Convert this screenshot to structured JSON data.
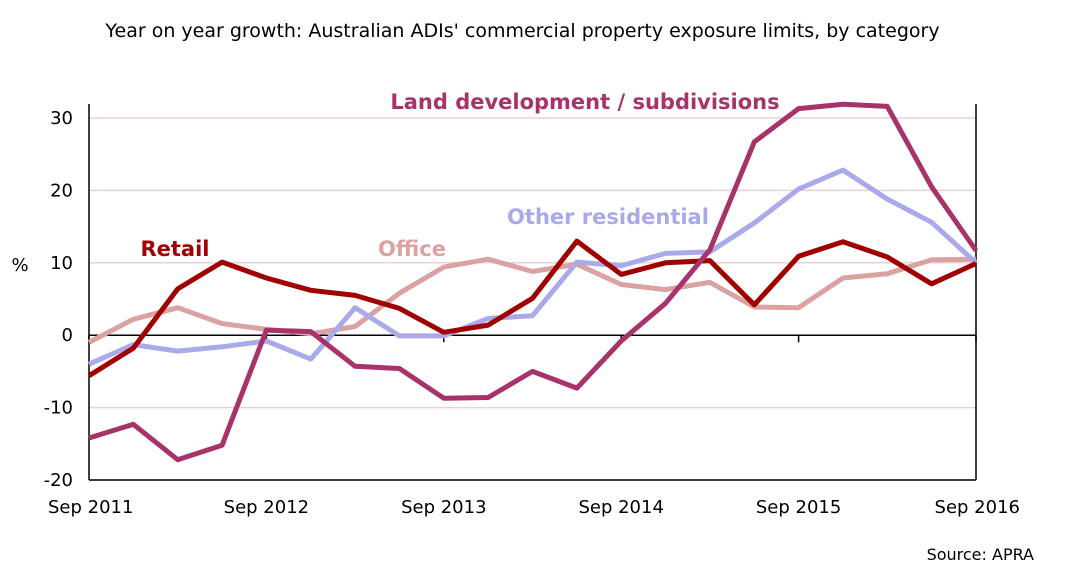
{
  "chart_data": {
    "type": "line",
    "title": "Year on year growth: Australian ADIs' commercial property exposure limits, by category",
    "ylabel": "%",
    "xlabel": "",
    "source": "Source: APRA",
    "ylim": [
      -20,
      30
    ],
    "yticks": [
      -20,
      -10,
      0,
      10,
      20,
      30
    ],
    "xtick_labels": [
      {
        "label": "Sep 2011",
        "index": 0
      },
      {
        "label": "Sep 2012",
        "index": 4
      },
      {
        "label": "Sep 2013",
        "index": 8
      },
      {
        "label": "Sep 2014",
        "index": 12
      },
      {
        "label": "Sep 2015",
        "index": 16
      },
      {
        "label": "Sep 2016",
        "index": 20
      }
    ],
    "x": [
      "Sep 2011",
      "Dec 2011",
      "Mar 2012",
      "Jun 2012",
      "Sep 2012",
      "Dec 2012",
      "Mar 2013",
      "Jun 2013",
      "Sep 2013",
      "Dec 2013",
      "Mar 2014",
      "Jun 2014",
      "Sep 2014",
      "Dec 2014",
      "Mar 2015",
      "Jun 2015",
      "Sep 2015",
      "Dec 2015",
      "Mar 2016",
      "Jun 2016",
      "Sep 2016"
    ],
    "series": [
      {
        "name": "Office",
        "color": "#dba2a2",
        "values": [
          -1.0,
          2.2,
          3.8,
          1.6,
          0.8,
          0.2,
          1.2,
          5.8,
          9.4,
          10.5,
          8.8,
          9.8,
          7.0,
          6.3,
          7.3,
          3.9,
          3.8,
          7.9,
          8.5,
          10.4,
          10.5
        ]
      },
      {
        "name": "Other residential",
        "color": "#aaaaea",
        "values": [
          -4.0,
          -1.3,
          -2.2,
          -1.6,
          -0.8,
          -3.3,
          3.8,
          -0.1,
          -0.1,
          2.3,
          2.7,
          10.1,
          9.6,
          11.3,
          11.5,
          15.5,
          20.2,
          22.8,
          18.8,
          15.6,
          10.0
        ]
      },
      {
        "name": "Retail",
        "color": "#a00000",
        "values": [
          -5.6,
          -1.8,
          6.4,
          10.1,
          7.9,
          6.2,
          5.5,
          3.7,
          0.4,
          1.4,
          5.1,
          13.0,
          8.4,
          10.0,
          10.3,
          4.2,
          10.9,
          12.9,
          10.8,
          7.1,
          9.9
        ]
      },
      {
        "name": "Land development / subdivisions",
        "color": "#a8336a",
        "values": [
          -14.2,
          -12.3,
          -17.2,
          -15.2,
          0.7,
          0.5,
          -4.3,
          -4.6,
          -8.7,
          -8.6,
          -5.0,
          -7.3,
          -0.8,
          4.4,
          11.8,
          26.7,
          31.3,
          31.9,
          31.6,
          20.5,
          11.7
        ]
      }
    ]
  }
}
